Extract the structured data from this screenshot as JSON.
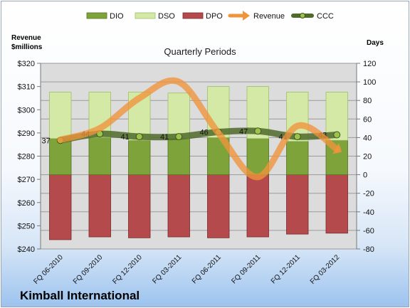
{
  "company_name": "Kimball International",
  "colors": {
    "dio": "#7fa33b",
    "dso": "#d4e9a6",
    "dpo": "#b54a4d",
    "revenue": "#f0943b",
    "ccc": "#4f6a2a"
  },
  "chart_data": {
    "type": "bar",
    "title": "Quarterly Periods",
    "left_axis_label": "Revenue\n$millions",
    "right_axis_label": "Days",
    "legend_position": "top",
    "grid": true,
    "categories": [
      "FQ 06-2010",
      "FQ 09-2010",
      "FQ 12-2010",
      "FQ 03-2011",
      "FQ 06-2011",
      "FQ 09-2011",
      "FQ 12-2011",
      "FQ 03-2012"
    ],
    "left_axis": {
      "ylim": [
        240,
        320
      ],
      "ticks": [
        "$240",
        "$250",
        "$260",
        "$270",
        "$280",
        "$290",
        "$300",
        "$310",
        "$320"
      ]
    },
    "right_axis": {
      "ylim": [
        -80,
        120
      ],
      "ticks": [
        "-80",
        "-60",
        "-40",
        "-20",
        "0",
        "20",
        "40",
        "60",
        "80",
        "100",
        "120"
      ]
    },
    "series": [
      {
        "name": "DIO",
        "type": "bar",
        "axis": "right",
        "values": [
          39,
          40,
          37,
          39,
          40,
          39,
          36,
          37
        ]
      },
      {
        "name": "DSO",
        "type": "bar",
        "axis": "right",
        "values": [
          50,
          49,
          52,
          49,
          55,
          56,
          53,
          52
        ]
      },
      {
        "name": "DPO",
        "type": "bar",
        "axis": "right",
        "values": [
          -70,
          -67,
          -68,
          -67,
          -68,
          -67,
          -64,
          -63
        ]
      },
      {
        "name": "Revenue",
        "type": "line",
        "axis": "left",
        "values": [
          287,
          292,
          305,
          312,
          290,
          271,
          293,
          283
        ]
      },
      {
        "name": "CCC",
        "type": "line",
        "axis": "right",
        "values": [
          37,
          44,
          41,
          41,
          46,
          47,
          41,
          43
        ],
        "labels": [
          "37",
          "44",
          "41",
          "41",
          "46",
          "47",
          "41",
          "43"
        ]
      }
    ]
  }
}
